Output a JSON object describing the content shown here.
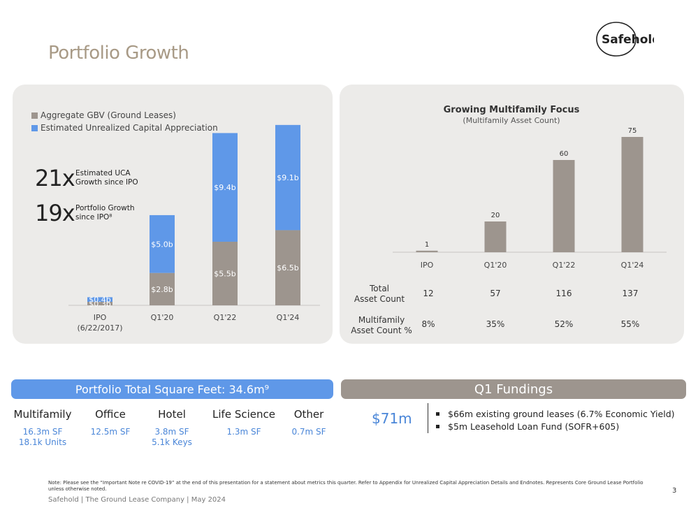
{
  "page_title": "Portfolio Growth",
  "logo_text": "Safehold",
  "colors": {
    "gray_bar": "#9d958e",
    "blue_bar": "#5f98e8",
    "title": "#a89a86"
  },
  "chart_data": [
    {
      "type": "bar",
      "stacked": true,
      "categories": [
        "IPO\n(6/22/2017)",
        "Q1'20",
        "Q1'22",
        "Q1'24"
      ],
      "series": [
        {
          "name": "Aggregate GBV (Ground Leases)",
          "values": [
            0.3,
            2.8,
            5.5,
            6.5
          ],
          "labels": [
            "$0.3b",
            "$2.8b",
            "$5.5b",
            "$6.5b"
          ],
          "color": "#9d958e"
        },
        {
          "name": "Estimated Unrealized Capital Appreciation",
          "values": [
            0.4,
            5.0,
            9.4,
            9.1
          ],
          "labels": [
            "$0.4b",
            "$5.0b",
            "$9.4b",
            "$9.1b"
          ],
          "color": "#5f98e8"
        }
      ],
      "ylim": [
        0,
        16.8
      ],
      "legend": "top-left",
      "annotations": [
        {
          "value": "21x",
          "text": "Estimated UCA Growth since IPO"
        },
        {
          "value": "19x",
          "text": "Portfolio Growth since IPO⁸"
        }
      ]
    },
    {
      "type": "bar",
      "title": "Growing Multifamily Focus",
      "subtitle": "(Multifamily Asset Count)",
      "categories": [
        "IPO",
        "Q1'20",
        "Q1'22",
        "Q1'24"
      ],
      "values": [
        1,
        20,
        60,
        75
      ],
      "ylim": [
        0,
        90
      ],
      "color": "#9d958e",
      "table": {
        "rows": [
          {
            "label": "Total\nAsset Count",
            "values": [
              "12",
              "57",
              "116",
              "137"
            ]
          },
          {
            "label": "Multifamily\nAsset Count %",
            "values": [
              "8%",
              "35%",
              "52%",
              "55%"
            ]
          }
        ]
      }
    }
  ],
  "sqft": {
    "header": "Portfolio Total Square Feet: 34.6m⁹",
    "categories": [
      {
        "name": "Multifamily",
        "value": "16.3m SF\n18.1k Units"
      },
      {
        "name": "Office",
        "value": "12.5m SF"
      },
      {
        "name": "Hotel",
        "value": "3.8m SF\n5.1k Keys"
      },
      {
        "name": "Life Science",
        "value": "1.3m SF"
      },
      {
        "name": "Other",
        "value": "0.7m SF"
      }
    ]
  },
  "fundings": {
    "header": "Q1 Fundings",
    "amount": "$71m",
    "items": [
      "$66m existing ground leases (6.7% Economic Yield)",
      "$5m Leasehold Loan Fund (SOFR+605)"
    ]
  },
  "note": "Note: Please see the “Important Note re COVID-19” at the end of this presentation for a statement about metrics this quarter. Refer to Appendix for Unrealized Capital Appreciation Details and Endnotes. Represents Core Ground Lease Portfolio unless otherwise noted.",
  "footer": "Safehold | The Ground Lease Company | May 2024",
  "page_number": "3"
}
